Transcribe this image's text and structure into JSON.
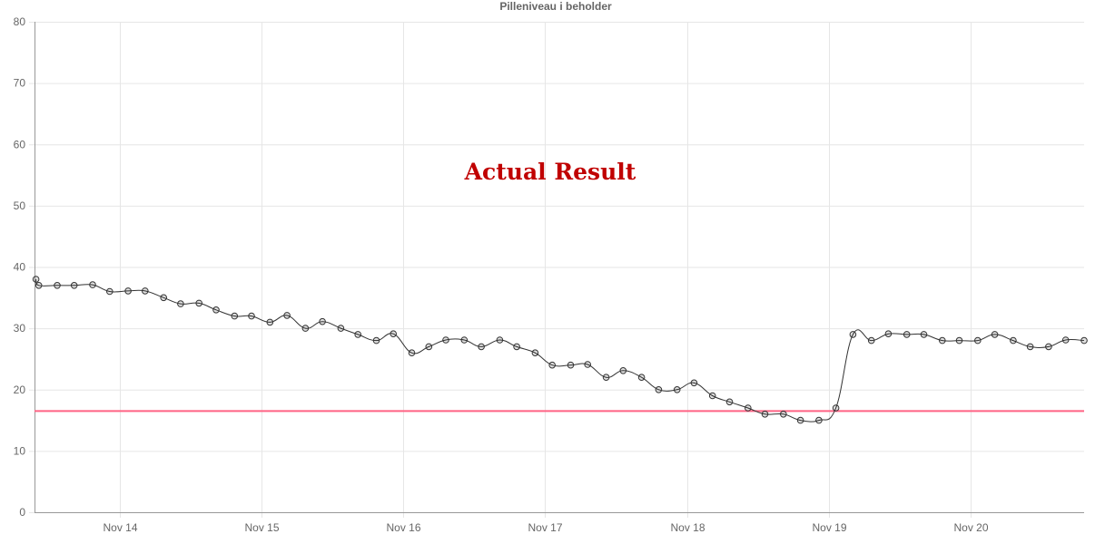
{
  "chart_data": {
    "type": "line",
    "title": "Pilleniveau i beholder",
    "annotation": "Actual Result",
    "xlabel": "",
    "ylabel": "",
    "ylim": [
      0,
      80
    ],
    "yticks": [
      0,
      10,
      20,
      30,
      40,
      50,
      60,
      70,
      80
    ],
    "xlim": [
      13.4,
      20.8
    ],
    "xticks": [
      {
        "value": 14,
        "label": "Nov 14"
      },
      {
        "value": 15,
        "label": "Nov 15"
      },
      {
        "value": 16,
        "label": "Nov 16"
      },
      {
        "value": 17,
        "label": "Nov 17"
      },
      {
        "value": 18,
        "label": "Nov 18"
      },
      {
        "value": 19,
        "label": "Nov 19"
      },
      {
        "value": 20,
        "label": "Nov 20"
      }
    ],
    "grid": true,
    "threshold": {
      "value": 16.5,
      "color": "#ff6384"
    },
    "line_color": "#333333",
    "series": [
      {
        "points": [
          [
            13.41,
            38
          ],
          [
            13.43,
            37
          ],
          [
            13.56,
            37
          ],
          [
            13.68,
            37
          ],
          [
            13.81,
            37.1
          ],
          [
            13.93,
            36
          ],
          [
            14.06,
            36.1
          ],
          [
            14.18,
            36.1
          ],
          [
            14.31,
            35
          ],
          [
            14.43,
            34
          ],
          [
            14.56,
            34.1
          ],
          [
            14.68,
            33
          ],
          [
            14.81,
            32
          ],
          [
            14.93,
            32
          ],
          [
            15.06,
            31
          ],
          [
            15.18,
            32.1
          ],
          [
            15.31,
            30
          ],
          [
            15.43,
            31.1
          ],
          [
            15.56,
            30
          ],
          [
            15.68,
            29
          ],
          [
            15.81,
            28
          ],
          [
            15.93,
            29.1
          ],
          [
            16.06,
            26
          ],
          [
            16.18,
            27
          ],
          [
            16.3,
            28.1
          ],
          [
            16.43,
            28.1
          ],
          [
            16.55,
            27
          ],
          [
            16.68,
            28.1
          ],
          [
            16.8,
            27
          ],
          [
            16.93,
            26
          ],
          [
            17.05,
            24
          ],
          [
            17.18,
            24
          ],
          [
            17.3,
            24.1
          ],
          [
            17.43,
            22
          ],
          [
            17.55,
            23.1
          ],
          [
            17.68,
            22
          ],
          [
            17.8,
            20
          ],
          [
            17.93,
            20
          ],
          [
            18.05,
            21.1
          ],
          [
            18.18,
            19
          ],
          [
            18.3,
            18
          ],
          [
            18.43,
            17
          ],
          [
            18.55,
            16
          ],
          [
            18.68,
            16
          ],
          [
            18.8,
            15
          ],
          [
            18.93,
            15
          ],
          [
            19.05,
            17
          ],
          [
            19.17,
            29
          ],
          [
            19.3,
            28
          ],
          [
            19.42,
            29.1
          ],
          [
            19.55,
            29
          ],
          [
            19.67,
            29
          ],
          [
            19.8,
            28
          ],
          [
            19.92,
            28
          ],
          [
            20.05,
            28
          ],
          [
            20.17,
            29
          ],
          [
            20.3,
            28
          ],
          [
            20.42,
            27
          ],
          [
            20.55,
            27
          ],
          [
            20.67,
            28.1
          ],
          [
            20.8,
            28
          ]
        ]
      }
    ]
  }
}
